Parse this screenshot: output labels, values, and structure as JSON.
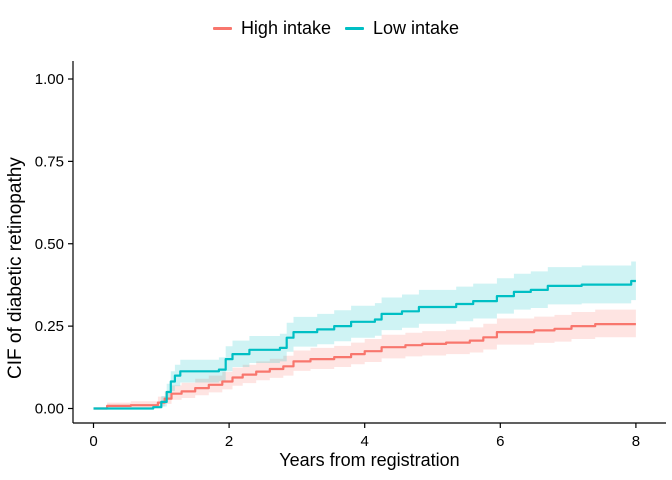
{
  "figure": {
    "background": "#FFFFFF",
    "text_color": "#000000",
    "axis_color": "#000000"
  },
  "legend": {
    "position": "top"
  },
  "chart_data": {
    "type": "line",
    "subtype": "step-cumulative-incidence",
    "title": "",
    "xlabel": "Years from registration",
    "ylabel": "CIF of diabetic retinopathy",
    "xlim": [
      0,
      8
    ],
    "ylim": [
      0,
      1.0
    ],
    "x_ticks": [
      0,
      2,
      4,
      6,
      8
    ],
    "x_tick_labels": [
      "0",
      "2",
      "4",
      "6",
      "8"
    ],
    "y_ticks": [
      0,
      0.25,
      0.5,
      0.75,
      1.0
    ],
    "y_tick_labels": [
      "0.00",
      "0.25",
      "0.50",
      "0.75",
      "1.00"
    ],
    "grid": false,
    "legend_position": "top-center",
    "series": [
      {
        "name": "High intake",
        "color": "#F8766D",
        "band_color": "rgba(248,118,109,0.20)",
        "steps": [
          [
            0,
            0
          ],
          [
            0.2,
            0.008
          ],
          [
            0.55,
            0.01
          ],
          [
            0.95,
            0.018
          ],
          [
            1.05,
            0.03
          ],
          [
            1.15,
            0.045
          ],
          [
            1.3,
            0.052
          ],
          [
            1.5,
            0.062
          ],
          [
            1.7,
            0.072
          ],
          [
            1.9,
            0.082
          ],
          [
            2.05,
            0.094
          ],
          [
            2.2,
            0.103
          ],
          [
            2.4,
            0.112
          ],
          [
            2.6,
            0.12
          ],
          [
            2.8,
            0.128
          ],
          [
            2.95,
            0.143
          ],
          [
            3.2,
            0.15
          ],
          [
            3.55,
            0.156
          ],
          [
            3.8,
            0.165
          ],
          [
            4.0,
            0.174
          ],
          [
            4.25,
            0.186
          ],
          [
            4.6,
            0.192
          ],
          [
            4.85,
            0.196
          ],
          [
            5.2,
            0.2
          ],
          [
            5.55,
            0.206
          ],
          [
            5.75,
            0.216
          ],
          [
            5.95,
            0.232
          ],
          [
            6.5,
            0.237
          ],
          [
            6.8,
            0.242
          ],
          [
            7.05,
            0.25
          ],
          [
            7.4,
            0.256
          ],
          [
            8,
            0.256
          ]
        ],
        "band_upper": [
          [
            0,
            0
          ],
          [
            0.2,
            0.018
          ],
          [
            0.55,
            0.022
          ],
          [
            0.95,
            0.036
          ],
          [
            1.05,
            0.052
          ],
          [
            1.15,
            0.07
          ],
          [
            1.3,
            0.078
          ],
          [
            1.5,
            0.09
          ],
          [
            1.7,
            0.1
          ],
          [
            1.9,
            0.111
          ],
          [
            2.05,
            0.124
          ],
          [
            2.2,
            0.133
          ],
          [
            2.4,
            0.143
          ],
          [
            2.6,
            0.151
          ],
          [
            2.8,
            0.16
          ],
          [
            2.95,
            0.176
          ],
          [
            3.2,
            0.184
          ],
          [
            3.55,
            0.19
          ],
          [
            3.8,
            0.2
          ],
          [
            4.0,
            0.211
          ],
          [
            4.25,
            0.224
          ],
          [
            4.6,
            0.23
          ],
          [
            4.85,
            0.235
          ],
          [
            5.2,
            0.239
          ],
          [
            5.55,
            0.246
          ],
          [
            5.75,
            0.257
          ],
          [
            5.95,
            0.273
          ],
          [
            6.5,
            0.279
          ],
          [
            6.8,
            0.284
          ],
          [
            7.05,
            0.293
          ],
          [
            7.4,
            0.3
          ],
          [
            8,
            0.301
          ]
        ],
        "band_lower": [
          [
            0,
            0
          ],
          [
            0.2,
            0.001
          ],
          [
            0.55,
            0.002
          ],
          [
            0.95,
            0.006
          ],
          [
            1.05,
            0.014
          ],
          [
            1.15,
            0.026
          ],
          [
            1.3,
            0.032
          ],
          [
            1.5,
            0.04
          ],
          [
            1.7,
            0.049
          ],
          [
            1.9,
            0.058
          ],
          [
            2.05,
            0.069
          ],
          [
            2.2,
            0.077
          ],
          [
            2.4,
            0.086
          ],
          [
            2.6,
            0.093
          ],
          [
            2.8,
            0.1
          ],
          [
            2.95,
            0.114
          ],
          [
            3.2,
            0.12
          ],
          [
            3.55,
            0.126
          ],
          [
            3.8,
            0.134
          ],
          [
            4.0,
            0.141
          ],
          [
            4.25,
            0.152
          ],
          [
            4.6,
            0.158
          ],
          [
            4.85,
            0.161
          ],
          [
            5.2,
            0.165
          ],
          [
            5.55,
            0.17
          ],
          [
            5.75,
            0.179
          ],
          [
            5.95,
            0.194
          ],
          [
            6.5,
            0.199
          ],
          [
            6.8,
            0.203
          ],
          [
            7.05,
            0.211
          ],
          [
            7.4,
            0.216
          ],
          [
            8,
            0.212
          ]
        ]
      },
      {
        "name": "Low intake",
        "color": "#00BFC4",
        "band_color": "rgba(0,191,196,0.19)",
        "steps": [
          [
            0,
            0
          ],
          [
            0.88,
            0.004
          ],
          [
            1.0,
            0.02
          ],
          [
            1.08,
            0.05
          ],
          [
            1.14,
            0.082
          ],
          [
            1.2,
            0.1
          ],
          [
            1.28,
            0.113
          ],
          [
            1.85,
            0.118
          ],
          [
            1.95,
            0.15
          ],
          [
            2.05,
            0.165
          ],
          [
            2.3,
            0.178
          ],
          [
            2.75,
            0.184
          ],
          [
            2.85,
            0.215
          ],
          [
            2.95,
            0.232
          ],
          [
            3.3,
            0.24
          ],
          [
            3.55,
            0.25
          ],
          [
            3.8,
            0.263
          ],
          [
            4.15,
            0.27
          ],
          [
            4.25,
            0.287
          ],
          [
            4.55,
            0.295
          ],
          [
            4.8,
            0.308
          ],
          [
            5.35,
            0.317
          ],
          [
            5.6,
            0.326
          ],
          [
            5.95,
            0.341
          ],
          [
            6.2,
            0.354
          ],
          [
            6.45,
            0.36
          ],
          [
            6.7,
            0.372
          ],
          [
            7.2,
            0.376
          ],
          [
            7.93,
            0.387
          ],
          [
            8,
            0.387
          ]
        ],
        "band_upper": [
          [
            0,
            0
          ],
          [
            0.88,
            0.01
          ],
          [
            1.0,
            0.038
          ],
          [
            1.08,
            0.075
          ],
          [
            1.14,
            0.113
          ],
          [
            1.2,
            0.133
          ],
          [
            1.28,
            0.148
          ],
          [
            1.85,
            0.155
          ],
          [
            1.95,
            0.189
          ],
          [
            2.05,
            0.206
          ],
          [
            2.3,
            0.22
          ],
          [
            2.75,
            0.227
          ],
          [
            2.85,
            0.26
          ],
          [
            2.95,
            0.278
          ],
          [
            3.3,
            0.287
          ],
          [
            3.55,
            0.298
          ],
          [
            3.8,
            0.312
          ],
          [
            4.15,
            0.32
          ],
          [
            4.25,
            0.337
          ],
          [
            4.55,
            0.346
          ],
          [
            4.8,
            0.36
          ],
          [
            5.35,
            0.37
          ],
          [
            5.6,
            0.379
          ],
          [
            5.95,
            0.395
          ],
          [
            6.2,
            0.409
          ],
          [
            6.45,
            0.416
          ],
          [
            6.7,
            0.429
          ],
          [
            7.2,
            0.434
          ],
          [
            7.93,
            0.446
          ],
          [
            8,
            0.446
          ]
        ],
        "band_lower": [
          [
            0,
            0
          ],
          [
            0.88,
            0.001
          ],
          [
            1.0,
            0.006
          ],
          [
            1.08,
            0.028
          ],
          [
            1.14,
            0.053
          ],
          [
            1.2,
            0.068
          ],
          [
            1.28,
            0.079
          ],
          [
            1.85,
            0.083
          ],
          [
            1.95,
            0.113
          ],
          [
            2.05,
            0.126
          ],
          [
            2.3,
            0.138
          ],
          [
            2.75,
            0.143
          ],
          [
            2.85,
            0.172
          ],
          [
            2.95,
            0.188
          ],
          [
            3.3,
            0.195
          ],
          [
            3.55,
            0.204
          ],
          [
            3.8,
            0.215
          ],
          [
            4.15,
            0.221
          ],
          [
            4.25,
            0.238
          ],
          [
            4.55,
            0.245
          ],
          [
            4.8,
            0.257
          ],
          [
            5.35,
            0.265
          ],
          [
            5.6,
            0.273
          ],
          [
            5.95,
            0.288
          ],
          [
            6.2,
            0.3
          ],
          [
            6.45,
            0.305
          ],
          [
            6.7,
            0.316
          ],
          [
            7.2,
            0.319
          ],
          [
            7.93,
            0.329
          ],
          [
            8,
            0.328
          ]
        ]
      }
    ]
  }
}
